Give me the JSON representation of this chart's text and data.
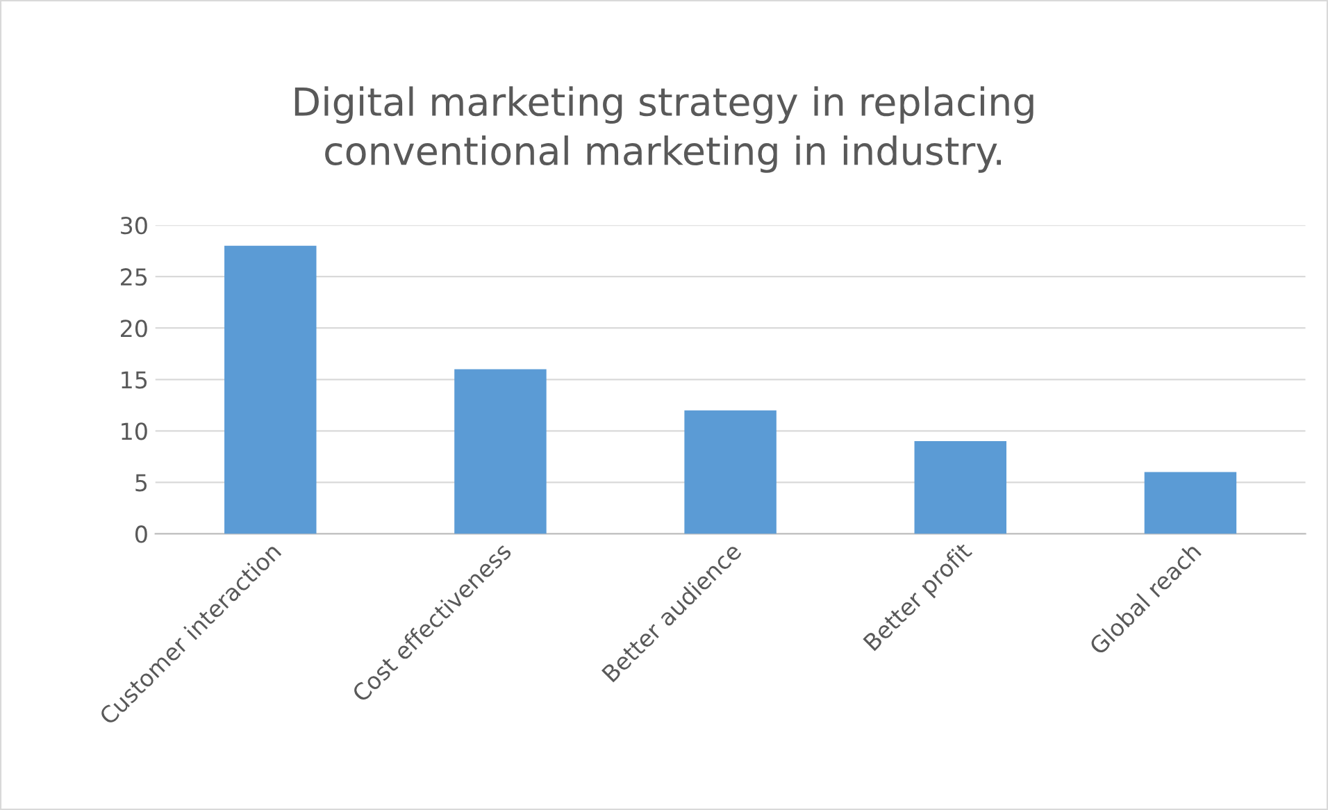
{
  "chart_data": {
    "type": "bar",
    "title": "Digital marketing strategy in replacing\nconventional marketing in industry.",
    "categories": [
      "Customer interaction",
      "Cost effectiveness",
      "Better audience",
      "Better profit",
      "Global reach"
    ],
    "values": [
      28,
      16,
      12,
      9,
      6
    ],
    "color": "#5b9bd5",
    "ylim": [
      0,
      30
    ],
    "yticks": [
      0,
      5,
      10,
      15,
      20,
      25,
      30
    ],
    "grid": "y"
  }
}
